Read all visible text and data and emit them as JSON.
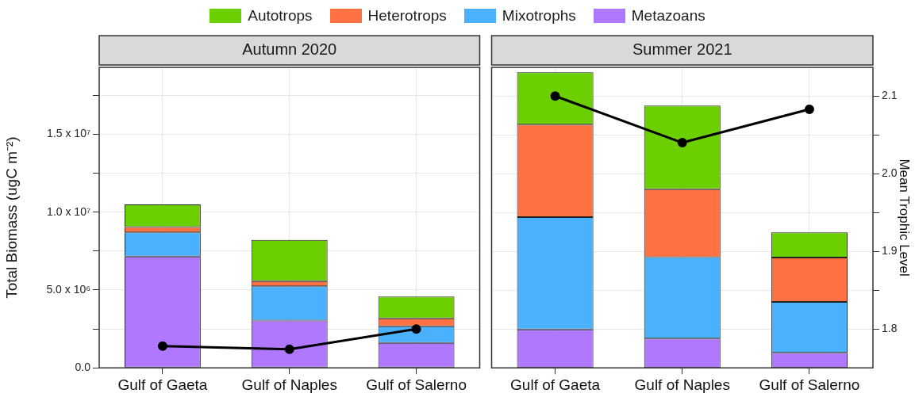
{
  "chart_data": [
    {
      "type": "bar",
      "title": "Autumn 2020",
      "ylabel": "Total Biomass (ugC m⁻²)",
      "categories": [
        "Gulf of Gaeta",
        "Gulf of Naples",
        "Gulf of Salerno"
      ],
      "stacked": true,
      "legend": "top",
      "grid": true,
      "tick_labels": "xy",
      "series": [
        {
          "name": "Metazoans",
          "color": "#b077ff",
          "values": [
            7150000,
            3040000,
            1600000
          ]
        },
        {
          "name": "Mixotrophs",
          "color": "#4ab1ff",
          "values": [
            1550000,
            2200000,
            1070000
          ]
        },
        {
          "name": "Heterotrops",
          "color": "#ff7043",
          "values": [
            350000,
            330000,
            510000
          ]
        },
        {
          "name": "Autotrops",
          "color": "#6bcf00",
          "values": [
            1440000,
            2650000,
            1400000
          ]
        },
        {
          "type": "line",
          "axis": "y2",
          "color": "#000000",
          "marker": "circle",
          "line_style": "solid",
          "values": [
            1.778,
            1.774,
            1.8
          ]
        }
      ],
      "ylim": [
        0,
        19300000
      ],
      "yticks": [
        {
          "value": 0,
          "label": "0.0"
        },
        {
          "value": 2500000,
          "label": null
        },
        {
          "value": 5000000,
          "label": "5.0 x 10⁶"
        },
        {
          "value": 7500000,
          "label": null
        },
        {
          "value": 10000000,
          "label": "1.0 x 10⁷"
        },
        {
          "value": 12500000,
          "label": null
        },
        {
          "value": 15000000,
          "label": "1.5 x 10⁷"
        },
        {
          "value": 17500000,
          "label": null
        }
      ],
      "y2lim": [
        1.75,
        2.137
      ]
    },
    {
      "type": "bar",
      "title": "Summer 2021",
      "y2label": "Mean Trophic Level",
      "categories": [
        "Gulf of Gaeta",
        "Gulf of Naples",
        "Gulf of Salerno"
      ],
      "stacked": true,
      "grid": true,
      "tick_labels": "xy2",
      "series": [
        {
          "color": "#b077ff",
          "values": [
            2460000,
            1880000,
            970000
          ]
        },
        {
          "color": "#4ab1ff",
          "values": [
            7220000,
            5230000,
            3260000
          ]
        },
        {
          "color": "#ff7043",
          "values": [
            5940000,
            4370000,
            2850000
          ]
        },
        {
          "color": "#6bcf00",
          "values": [
            3360000,
            5370000,
            1620000
          ]
        },
        {
          "type": "line",
          "axis": "y2",
          "color": "#000000",
          "marker": "circle",
          "line_style": "solid",
          "values": [
            2.1,
            2.04,
            2.083
          ]
        }
      ],
      "ylim": [
        0,
        19300000
      ],
      "y2lim": [
        1.75,
        2.137
      ],
      "y2ticks": [
        {
          "value": 1.8,
          "label": "1.8"
        },
        {
          "value": 1.85,
          "label": null
        },
        {
          "value": 1.9,
          "label": "1.9"
        },
        {
          "value": 1.95,
          "label": null
        },
        {
          "value": 2,
          "label": "2.0"
        },
        {
          "value": 2.05,
          "label": null
        },
        {
          "value": 2.1,
          "label": "2.1"
        }
      ]
    }
  ]
}
